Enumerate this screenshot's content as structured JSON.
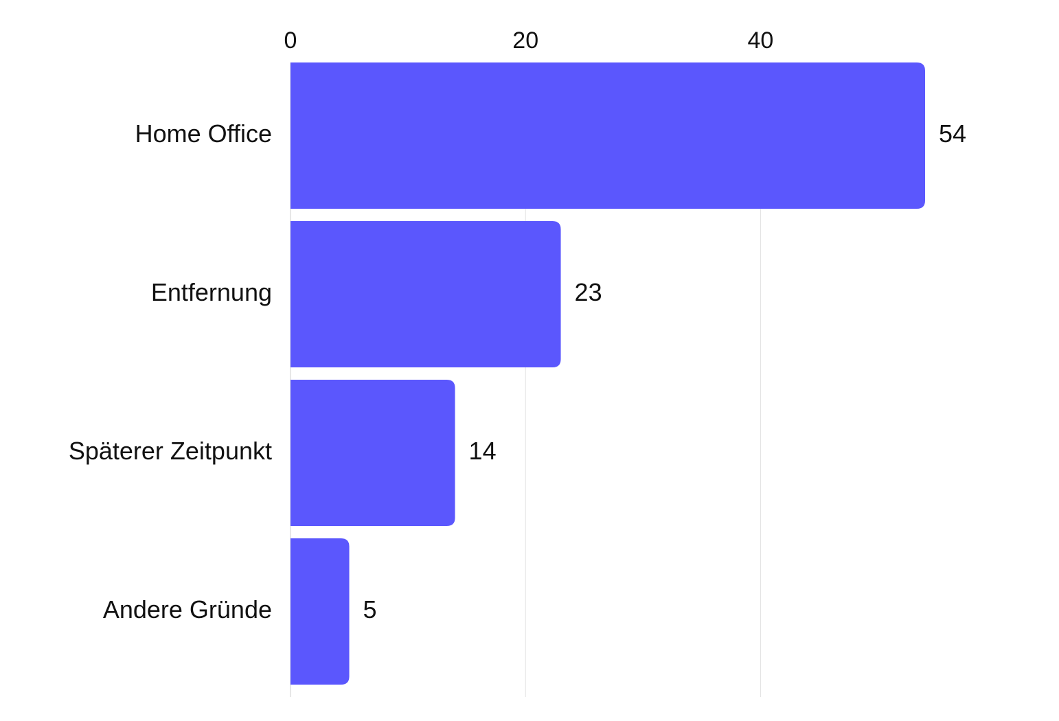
{
  "chart_data": {
    "type": "bar",
    "orientation": "horizontal",
    "categories": [
      "Home Office",
      "Entfernung",
      "Späterer Zeitpunkt",
      "Andere Gründe"
    ],
    "values": [
      54,
      23,
      14,
      5
    ],
    "x_ticks": [
      "0",
      "20",
      "40"
    ],
    "xlim": [
      0,
      54
    ],
    "grid": true,
    "bar_color": "#5b57fd",
    "legend": "none"
  }
}
